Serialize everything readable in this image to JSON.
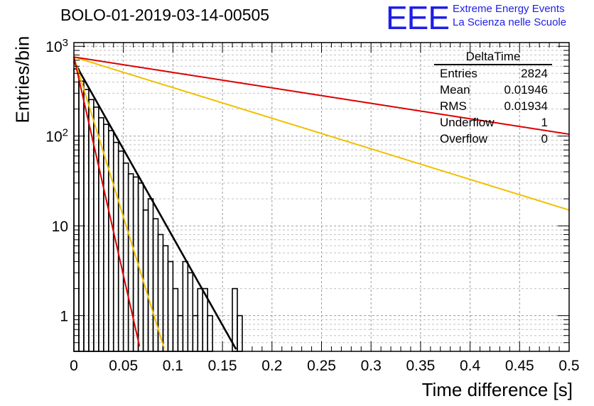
{
  "title": "BOLO-01-2019-03-14-00505",
  "logo": {
    "mark": "EEE",
    "line1": "Extreme Energy Events",
    "line2": "La Scienza nelle Scuole",
    "color": "#1e1ee6"
  },
  "stats_box": {
    "name": "DeltaTime",
    "rows": [
      {
        "label": "Entries",
        "value": "2824"
      },
      {
        "label": "Mean",
        "value": "0.01946"
      },
      {
        "label": "RMS",
        "value": "0.01934"
      },
      {
        "label": "Underflow",
        "value": "1"
      },
      {
        "label": "Overflow",
        "value": "0"
      }
    ]
  },
  "chart_data": {
    "type": "histogram",
    "xlabel": "Time difference [s]",
    "ylabel": "Entries/bin",
    "xlim": [
      0,
      0.5
    ],
    "ylim": [
      0.4,
      1100
    ],
    "ylog": true,
    "grid": true,
    "x_ticks": [
      "0",
      "0.05",
      "0.1",
      "0.15",
      "0.2",
      "0.25",
      "0.3",
      "0.35",
      "0.4",
      "0.45",
      "0.5"
    ],
    "y_ticks": [
      "1",
      "10",
      "10^2",
      "10^3"
    ],
    "bin_width": 0.005,
    "bins": [
      {
        "x": 0.0,
        "y": 560
      },
      {
        "x": 0.005,
        "y": 410
      },
      {
        "x": 0.01,
        "y": 330
      },
      {
        "x": 0.015,
        "y": 255
      },
      {
        "x": 0.02,
        "y": 210
      },
      {
        "x": 0.025,
        "y": 160
      },
      {
        "x": 0.03,
        "y": 135
      },
      {
        "x": 0.035,
        "y": 115
      },
      {
        "x": 0.04,
        "y": 85
      },
      {
        "x": 0.045,
        "y": 68
      },
      {
        "x": 0.05,
        "y": 50
      },
      {
        "x": 0.055,
        "y": 38
      },
      {
        "x": 0.06,
        "y": 35
      },
      {
        "x": 0.065,
        "y": 30
      },
      {
        "x": 0.07,
        "y": 15
      },
      {
        "x": 0.075,
        "y": 20
      },
      {
        "x": 0.08,
        "y": 12
      },
      {
        "x": 0.085,
        "y": 8
      },
      {
        "x": 0.09,
        "y": 6
      },
      {
        "x": 0.095,
        "y": 4
      },
      {
        "x": 0.1,
        "y": 2
      },
      {
        "x": 0.105,
        "y": 1
      },
      {
        "x": 0.11,
        "y": 4
      },
      {
        "x": 0.115,
        "y": 3
      },
      {
        "x": 0.12,
        "y": 1
      },
      {
        "x": 0.125,
        "y": 2
      },
      {
        "x": 0.13,
        "y": 2
      },
      {
        "x": 0.135,
        "y": 1
      },
      {
        "x": 0.16,
        "y": 2
      },
      {
        "x": 0.165,
        "y": 1
      }
    ],
    "series": [
      {
        "color": "#000000",
        "a": 680,
        "b": 45.1
      },
      {
        "color": "#f0c000",
        "a": 760,
        "b": 82
      },
      {
        "color": "#f0c000",
        "a": 760,
        "b": 7.85
      },
      {
        "color": "#dd0000",
        "a": 760,
        "b": 112
      },
      {
        "color": "#dd0000",
        "a": 760,
        "b": 3.96
      }
    ]
  }
}
